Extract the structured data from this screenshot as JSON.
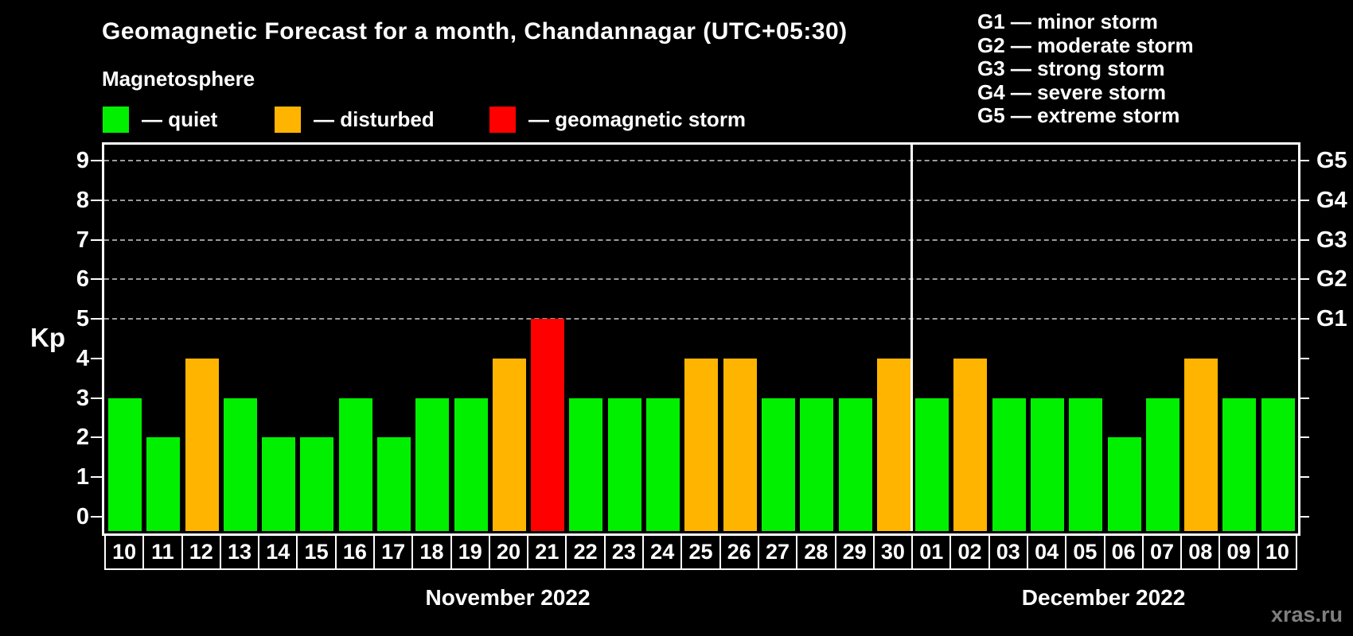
{
  "header": {
    "title": "Geomagnetic Forecast for a month, Chandannagar (UTC+05:30)",
    "subtitle": "Magnetosphere",
    "legend": [
      {
        "name": "quiet",
        "label": "— quiet",
        "color": "#00f000"
      },
      {
        "name": "disturbed",
        "label": "— disturbed",
        "color": "#ffb400"
      },
      {
        "name": "storm",
        "label": "— geomagnetic storm",
        "color": "#ff0000"
      }
    ],
    "g_legend": [
      "G1 — minor storm",
      "G2 — moderate storm",
      "G3 — strong storm",
      "G4 — severe storm",
      "G5 — extreme storm"
    ]
  },
  "chart_data": {
    "type": "bar",
    "title": "Geomagnetic Forecast for a month, Chandannagar (UTC+05:30)",
    "ylabel": "Kp",
    "xlabel": "",
    "ylim": [
      0,
      9
    ],
    "yticks": [
      0,
      1,
      2,
      3,
      4,
      5,
      6,
      7,
      8,
      9
    ],
    "gridlines_at": [
      5,
      6,
      7,
      8,
      9
    ],
    "grid": "dashed horizontal at G-storm levels only",
    "legend_position": "top",
    "right_axis": [
      {
        "value": 5,
        "label": "G1"
      },
      {
        "value": 6,
        "label": "G2"
      },
      {
        "value": 7,
        "label": "G3"
      },
      {
        "value": 8,
        "label": "G4"
      },
      {
        "value": 9,
        "label": "G5"
      }
    ],
    "categories": [
      "10",
      "11",
      "12",
      "13",
      "14",
      "15",
      "16",
      "17",
      "18",
      "19",
      "20",
      "21",
      "22",
      "23",
      "24",
      "25",
      "26",
      "27",
      "28",
      "29",
      "30",
      "01",
      "02",
      "03",
      "04",
      "05",
      "06",
      "07",
      "08",
      "09",
      "10"
    ],
    "values": [
      3,
      2,
      4,
      3,
      2,
      2,
      3,
      2,
      3,
      3,
      4,
      5,
      3,
      3,
      3,
      4,
      4,
      3,
      3,
      3,
      4,
      3,
      4,
      3,
      3,
      3,
      2,
      3,
      4,
      3,
      3
    ],
    "statuses": [
      "quiet",
      "quiet",
      "disturbed",
      "quiet",
      "quiet",
      "quiet",
      "quiet",
      "quiet",
      "quiet",
      "quiet",
      "disturbed",
      "storm",
      "quiet",
      "quiet",
      "quiet",
      "disturbed",
      "disturbed",
      "quiet",
      "quiet",
      "quiet",
      "disturbed",
      "quiet",
      "disturbed",
      "quiet",
      "quiet",
      "quiet",
      "quiet",
      "quiet",
      "disturbed",
      "quiet",
      "quiet"
    ],
    "colors": {
      "quiet": "#00f000",
      "disturbed": "#ffb400",
      "storm": "#ff0000"
    },
    "months": [
      {
        "label": "November 2022",
        "span": [
          0,
          20
        ]
      },
      {
        "label": "December 2022",
        "span": [
          21,
          30
        ]
      }
    ]
  },
  "footer": {
    "watermark": "xras.ru"
  }
}
